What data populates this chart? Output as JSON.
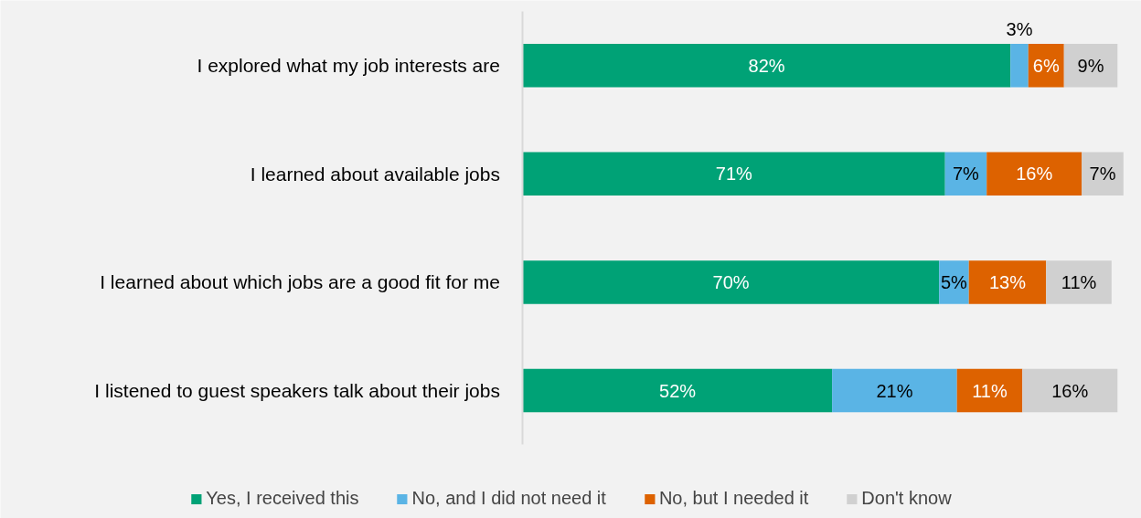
{
  "chart_data": {
    "type": "bar",
    "orientation": "horizontal",
    "stacked": true,
    "grid": false,
    "legend": "bottom",
    "tick_labels": "y",
    "categories": [
      "I explored what my job interests are",
      "I learned about available jobs",
      "I learned about which jobs are a good fit for me",
      "I listened to guest speakers talk about their jobs"
    ],
    "series": [
      {
        "name": "Yes, I received this",
        "color": "#00a276",
        "values": [
          82,
          71,
          70,
          52
        ],
        "value_labels": [
          "82%",
          "71%",
          "70%",
          "52%"
        ]
      },
      {
        "name": "No, and I did not need it",
        "color": "#5ab4e5",
        "values": [
          3,
          7,
          5,
          21
        ],
        "value_labels": [
          "3%",
          "7%",
          "5%",
          "21%"
        ]
      },
      {
        "name": "No, but I needed it",
        "color": "#dd6200",
        "values": [
          6,
          16,
          13,
          11
        ],
        "value_labels": [
          "6%",
          "16%",
          "13%",
          "11%"
        ]
      },
      {
        "name": "Don't know",
        "color": "#d0d0d0",
        "values": [
          9,
          7,
          11,
          16
        ],
        "value_labels": [
          "9%",
          "7%",
          "11%",
          "16%"
        ]
      }
    ]
  }
}
